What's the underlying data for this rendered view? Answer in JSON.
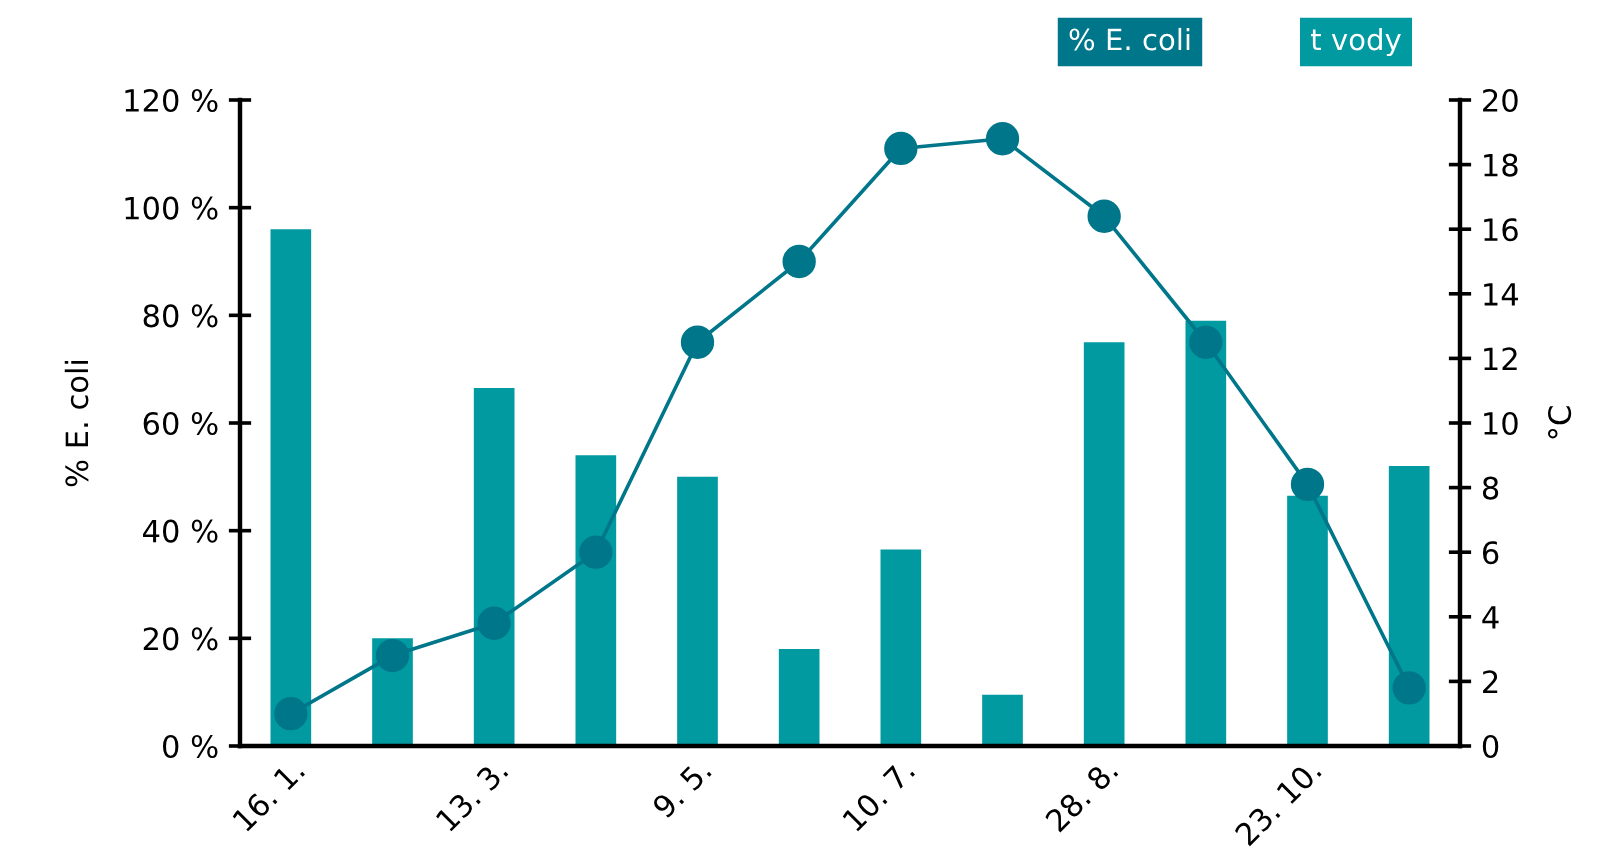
{
  "chart_data": {
    "type": "bar",
    "categories": [
      "16. 1.",
      null,
      "13. 3.",
      null,
      "9. 5.",
      null,
      "10. 7.",
      null,
      "28. 8.",
      null,
      "23. 10.",
      null
    ],
    "series": [
      {
        "name": "t vody",
        "color": "#009aa0",
        "values": [
          96,
          20,
          66.5,
          54,
          50,
          18,
          36.5,
          9.5,
          75,
          79,
          46.5,
          52
        ]
      },
      {
        "name": "% E. coli",
        "type": "line",
        "axis": "y2",
        "color": "#00768a",
        "marker": "circle",
        "values": [
          1.0,
          2.8,
          3.8,
          6.0,
          12.5,
          15.0,
          18.5,
          18.8,
          16.4,
          12.5,
          8.1,
          1.8
        ]
      }
    ],
    "ylabel": "% E. coli",
    "y2label": "°C",
    "ylim": [
      0,
      120
    ],
    "yticks": [
      {
        "value": 0,
        "label": "0 %"
      },
      {
        "value": 20,
        "label": "20 %"
      },
      {
        "value": 40,
        "label": "40 %"
      },
      {
        "value": 60,
        "label": "60 %"
      },
      {
        "value": 80,
        "label": "80 %"
      },
      {
        "value": 100,
        "label": "100 %"
      },
      {
        "value": 120,
        "label": "120 %"
      }
    ],
    "y2lim": [
      0,
      20
    ],
    "y2ticks": [
      0,
      2,
      4,
      6,
      8,
      10,
      12,
      14,
      16,
      18,
      20
    ],
    "legend": "top right",
    "grid": false
  }
}
